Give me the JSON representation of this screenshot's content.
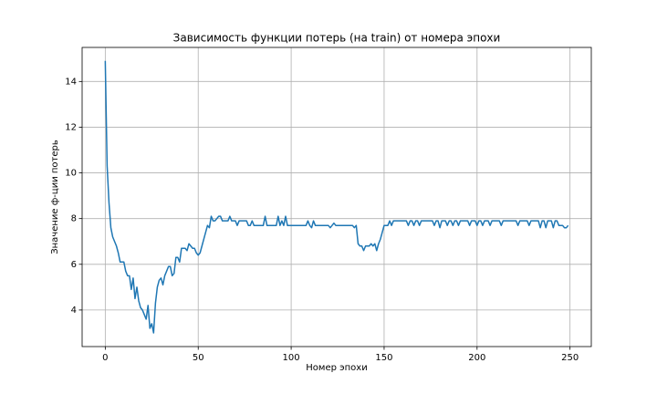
{
  "chart_data": {
    "type": "line",
    "title": "Зависимость функции потерь (на train) от номера эпохи",
    "xlabel": "Номер эпохи",
    "ylabel": "Значение ф-ции потерь",
    "color": "#1f77b4",
    "grid": true,
    "xlim": [
      -12.45,
      261.45
    ],
    "ylim": [
      2.4,
      15.49
    ],
    "xticks": [
      0,
      50,
      100,
      150,
      200,
      250
    ],
    "yticks": [
      4,
      6,
      8,
      10,
      12,
      14
    ],
    "x": [
      0,
      1,
      2,
      3,
      4,
      5,
      6,
      7,
      8,
      9,
      10,
      11,
      12,
      13,
      14,
      15,
      16,
      17,
      18,
      19,
      20,
      21,
      22,
      23,
      24,
      25,
      26,
      27,
      28,
      29,
      30,
      31,
      32,
      33,
      34,
      35,
      36,
      37,
      38,
      39,
      40,
      41,
      42,
      43,
      44,
      45,
      46,
      47,
      48,
      49,
      50,
      51,
      52,
      53,
      54,
      55,
      56,
      57,
      58,
      59,
      60,
      61,
      62,
      63,
      64,
      65,
      66,
      67,
      68,
      69,
      70,
      71,
      72,
      73,
      74,
      75,
      76,
      77,
      78,
      79,
      80,
      81,
      82,
      83,
      84,
      85,
      86,
      87,
      88,
      89,
      90,
      91,
      92,
      93,
      94,
      95,
      96,
      97,
      98,
      99,
      100,
      101,
      102,
      103,
      104,
      105,
      106,
      107,
      108,
      109,
      110,
      111,
      112,
      113,
      114,
      115,
      116,
      117,
      118,
      119,
      120,
      121,
      122,
      123,
      124,
      125,
      126,
      127,
      128,
      129,
      130,
      131,
      132,
      133,
      134,
      135,
      136,
      137,
      138,
      139,
      140,
      141,
      142,
      143,
      144,
      145,
      146,
      147,
      148,
      149,
      150,
      151,
      152,
      153,
      154,
      155,
      156,
      157,
      158,
      159,
      160,
      161,
      162,
      163,
      164,
      165,
      166,
      167,
      168,
      169,
      170,
      171,
      172,
      173,
      174,
      175,
      176,
      177,
      178,
      179,
      180,
      181,
      182,
      183,
      184,
      185,
      186,
      187,
      188,
      189,
      190,
      191,
      192,
      193,
      194,
      195,
      196,
      197,
      198,
      199,
      200,
      201,
      202,
      203,
      204,
      205,
      206,
      207,
      208,
      209,
      210,
      211,
      212,
      213,
      214,
      215,
      216,
      217,
      218,
      219,
      220,
      221,
      222,
      223,
      224,
      225,
      226,
      227,
      228,
      229,
      230,
      231,
      232,
      233,
      234,
      235,
      236,
      237,
      238,
      239,
      240,
      241,
      242,
      243,
      244,
      245,
      246,
      247,
      248,
      249
    ],
    "values": [
      14.9,
      10.3,
      8.7,
      7.6,
      7.2,
      7.0,
      6.8,
      6.5,
      6.1,
      6.1,
      6.1,
      5.7,
      5.5,
      5.5,
      4.9,
      5.4,
      4.5,
      5.0,
      4.4,
      4.1,
      4.0,
      3.8,
      3.6,
      4.2,
      3.2,
      3.4,
      3.0,
      4.3,
      5.0,
      5.3,
      5.4,
      5.1,
      5.5,
      5.7,
      5.9,
      5.9,
      5.5,
      5.6,
      6.3,
      6.3,
      6.1,
      6.7,
      6.7,
      6.7,
      6.6,
      6.9,
      6.8,
      6.7,
      6.7,
      6.5,
      6.4,
      6.5,
      6.8,
      7.1,
      7.4,
      7.7,
      7.6,
      8.1,
      7.9,
      7.9,
      8.0,
      8.1,
      8.1,
      7.9,
      7.9,
      7.9,
      7.9,
      8.1,
      7.9,
      7.9,
      7.9,
      7.7,
      7.9,
      7.9,
      7.9,
      7.9,
      7.9,
      7.7,
      7.7,
      7.9,
      7.7,
      7.7,
      7.7,
      7.7,
      7.7,
      7.7,
      8.1,
      7.7,
      7.7,
      7.7,
      7.7,
      7.7,
      7.7,
      8.1,
      7.7,
      7.9,
      7.7,
      8.1,
      7.7,
      7.7,
      7.7,
      7.7,
      7.7,
      7.7,
      7.7,
      7.7,
      7.7,
      7.7,
      7.7,
      7.9,
      7.7,
      7.6,
      7.9,
      7.7,
      7.7,
      7.7,
      7.7,
      7.7,
      7.7,
      7.7,
      7.7,
      7.6,
      7.7,
      7.8,
      7.7,
      7.7,
      7.7,
      7.7,
      7.7,
      7.7,
      7.7,
      7.7,
      7.7,
      7.7,
      7.6,
      7.7,
      6.9,
      6.8,
      6.8,
      6.6,
      6.8,
      6.8,
      6.8,
      6.9,
      6.8,
      6.9,
      6.6,
      6.9,
      7.1,
      7.4,
      7.7,
      7.7,
      7.7,
      7.9,
      7.7,
      7.9,
      7.9,
      7.9,
      7.9,
      7.9,
      7.9,
      7.9,
      7.9,
      7.7,
      7.9,
      7.9,
      7.7,
      7.9,
      7.9,
      7.7,
      7.9,
      7.9,
      7.9,
      7.9,
      7.9,
      7.9,
      7.9,
      7.7,
      7.9,
      7.9,
      7.6,
      7.9,
      7.9,
      7.9,
      7.7,
      7.9,
      7.9,
      7.7,
      7.9,
      7.9,
      7.7,
      7.9,
      7.9,
      7.9,
      7.9,
      7.9,
      7.7,
      7.9,
      7.9,
      7.9,
      7.7,
      7.9,
      7.9,
      7.7,
      7.9,
      7.9,
      7.9,
      7.7,
      7.9,
      7.9,
      7.9,
      7.9,
      7.9,
      7.7,
      7.9,
      7.9,
      7.9,
      7.9,
      7.9,
      7.9,
      7.9,
      7.9,
      7.7,
      7.9,
      7.9,
      7.9,
      7.9,
      7.9,
      7.7,
      7.9,
      7.9,
      7.9,
      7.9,
      7.9,
      7.6,
      7.9,
      7.9,
      7.6,
      7.9,
      7.9,
      7.9,
      7.6,
      7.9,
      7.9,
      7.7,
      7.7,
      7.7,
      7.6,
      7.6,
      7.7
    ]
  }
}
